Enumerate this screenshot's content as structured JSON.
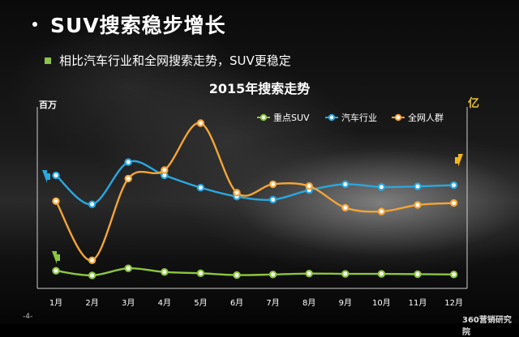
{
  "title": "SUV搜索稳步增长",
  "subtitle": "相比汽车行业和全网搜索走势，SUV更稳定",
  "left_unit": "百万",
  "right_unit": "亿",
  "footer_left": "-4-",
  "footer_right": "360营销研究院",
  "colors": {
    "suv": "#8dc63f",
    "auto": "#29a8e0",
    "web": "#f4a536",
    "right_arrow": "#f2b51e"
  },
  "chart_data": {
    "type": "line",
    "title": "2015年搜索走势",
    "categories": [
      "1月",
      "2月",
      "3月",
      "4月",
      "5月",
      "6月",
      "7月",
      "8月",
      "9月",
      "10月",
      "11月",
      "12月"
    ],
    "yleft_label": "百万",
    "yright_label": "亿",
    "series": [
      {
        "name": "重点SUV",
        "axis": "left",
        "values": [
          0.52,
          0.37,
          0.6,
          0.48,
          0.44,
          0.38,
          0.4,
          0.43,
          0.42,
          0.42,
          0.41,
          0.4
        ]
      },
      {
        "name": "汽车行业",
        "axis": "left",
        "values": [
          3.62,
          2.68,
          4.05,
          3.62,
          3.22,
          2.93,
          2.83,
          3.14,
          3.33,
          3.24,
          3.26,
          3.3
        ]
      },
      {
        "name": "全网人群",
        "axis": "right",
        "values": [
          4.36,
          3.73,
          4.6,
          4.69,
          5.19,
          4.45,
          4.54,
          4.52,
          4.29,
          4.25,
          4.32,
          4.34
        ]
      }
    ],
    "legend": "top-right",
    "grid": false
  }
}
